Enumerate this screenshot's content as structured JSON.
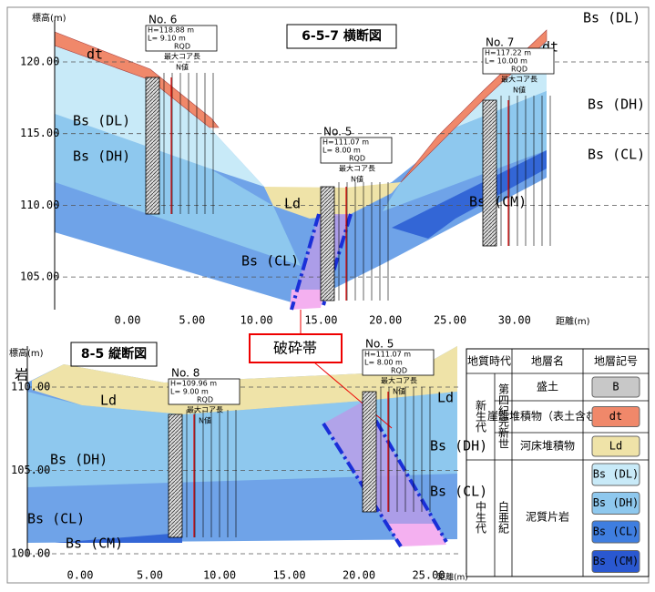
{
  "cross_section": {
    "title": "6-5-7 横断図",
    "y_axis_label": "標高(m)",
    "y_labels": [
      "120.00",
      "115.00",
      "110.00",
      "105.00"
    ],
    "x_labels": [
      "0.00",
      "5.00",
      "10.00",
      "15.00",
      "20.00",
      "25.00",
      "30.00"
    ],
    "x_axis_label": "距離(m)",
    "layer_labels": [
      "dt",
      "Bs (DL)",
      "Bs (DH)",
      "Bs (CL)",
      "Ld",
      "Bs (CM)",
      "dt",
      "Bs (DL)",
      "Bs (DH)",
      "Bs (CL)"
    ],
    "boreholes": [
      {
        "name": "No. 6",
        "h": "H=118.88 m",
        "l": "L=  9.10 m",
        "rqd": "RQD",
        "core": "最大コア長",
        "n": "N値"
      },
      {
        "name": "No. 5",
        "h": "H=111.07 m",
        "l": "L=  8.00 m",
        "rqd": "RQD",
        "core": "最大コア長",
        "n": "N値"
      },
      {
        "name": "No. 7",
        "h": "H=117.22 m",
        "l": "L= 10.00 m",
        "rqd": "RQD",
        "core": "最大コア長",
        "n": "N値"
      }
    ]
  },
  "longitudinal_section": {
    "title": "8-5 縦断図",
    "y_axis_label": "標高(m)",
    "y_labels": [
      "110.00",
      "105.00",
      "100.00"
    ],
    "x_labels": [
      "0.00",
      "5.00",
      "10.00",
      "15.00",
      "20.00",
      "25.00"
    ],
    "x_axis_label": "距離(m)",
    "layer_labels": [
      "岩",
      "Ld",
      "Bs (DH)",
      "Bs (CL)",
      "Bs (CM)",
      "Ld",
      "Bs (DH)",
      "Bs (CL)"
    ],
    "boreholes": [
      {
        "name": "No. 8",
        "h": "H=109.96 m",
        "l": "L=  9.00 m",
        "rqd": "RQD",
        "core": "最大コア長",
        "n": "N値"
      },
      {
        "name": "No. 5",
        "h": "H=111.07 m",
        "l": "L=  8.00 m",
        "rqd": "RQD",
        "core": "最大コア長",
        "n": "N値"
      }
    ]
  },
  "callout": "破砕帯",
  "legend": {
    "headers": [
      "地質時代",
      "地層名",
      "地層記号"
    ],
    "eras": [
      "新生代",
      "中生代"
    ],
    "periods": [
      "第四紀完新世",
      "白亜紀"
    ],
    "rows": [
      {
        "name": "盛土",
        "symbol": "B"
      },
      {
        "name": "崖錐堆積物（表土含む）",
        "symbol": "dt"
      },
      {
        "name": "河床堆積物",
        "symbol": "Ld"
      },
      {
        "name": "泥質片岩",
        "symbols": [
          "Bs (DL)",
          "Bs (DH)",
          "Bs (CL)",
          "Bs (CM)"
        ]
      }
    ]
  }
}
